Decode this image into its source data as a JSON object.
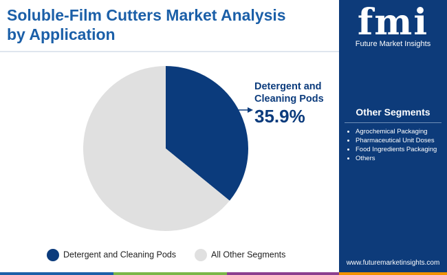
{
  "chart_data": {
    "type": "pie",
    "title": "Soluble-Film Cutters Market Analysis by Application",
    "categories": [
      "Detergent and Cleaning Pods",
      "All Other Segments"
    ],
    "values": [
      35.9,
      64.1
    ],
    "value_labels": [
      "35.9%",
      null
    ],
    "colors": [
      "#0b3b7c",
      "#e0e0e0"
    ]
  },
  "logo": {
    "mark": "fmi",
    "name": "Future Market Insights"
  },
  "other_segments": {
    "title": "Other Segments",
    "items": [
      "Agrochemical Packaging",
      "Pharmaceutical Unit Doses",
      "Food Ingredients Packaging",
      "Others"
    ]
  },
  "url": "www.futuremarketinsights.com"
}
